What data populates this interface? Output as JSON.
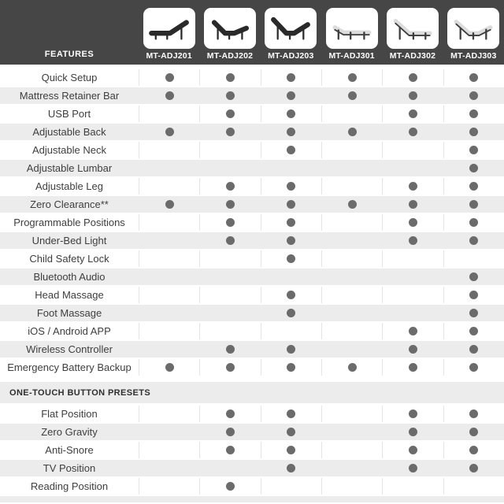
{
  "header": {
    "features_label": "FEATURES",
    "models": [
      {
        "name": "MT-ADJ201",
        "bed_icon": "bed-dark-incline-icon",
        "bed_color": "dark",
        "profile": "incline"
      },
      {
        "name": "MT-ADJ202",
        "bed_icon": "bed-dark-head-foot-icon",
        "bed_color": "dark",
        "profile": "headfoot"
      },
      {
        "name": "MT-ADJ203",
        "bed_icon": "bed-dark-head-foot-steep-icon",
        "bed_color": "dark",
        "profile": "headfootsteep"
      },
      {
        "name": "MT-ADJ301",
        "bed_icon": "bed-light-flat-icon",
        "bed_color": "light",
        "profile": "flat"
      },
      {
        "name": "MT-ADJ302",
        "bed_icon": "bed-light-head-icon",
        "bed_color": "light",
        "profile": "head"
      },
      {
        "name": "MT-ADJ303",
        "bed_icon": "bed-light-head-foot-icon",
        "bed_color": "light",
        "profile": "headfoot2"
      }
    ]
  },
  "sections": [
    {
      "title": "",
      "rows": [
        {
          "feature": "Quick Setup",
          "availability": [
            1,
            1,
            1,
            1,
            1,
            1
          ]
        },
        {
          "feature": "Mattress Retainer Bar",
          "availability": [
            1,
            1,
            1,
            1,
            1,
            1
          ]
        },
        {
          "feature": "USB Port",
          "availability": [
            0,
            1,
            1,
            0,
            1,
            1
          ]
        },
        {
          "feature": "Adjustable Back",
          "availability": [
            1,
            1,
            1,
            1,
            1,
            1
          ]
        },
        {
          "feature": "Adjustable Neck",
          "availability": [
            0,
            0,
            1,
            0,
            0,
            1
          ]
        },
        {
          "feature": "Adjustable Lumbar",
          "availability": [
            0,
            0,
            0,
            0,
            0,
            1
          ]
        },
        {
          "feature": "Adjustable Leg",
          "availability": [
            0,
            1,
            1,
            0,
            1,
            1
          ]
        },
        {
          "feature": "Zero Clearance**",
          "availability": [
            1,
            1,
            1,
            1,
            1,
            1
          ]
        },
        {
          "feature": "Programmable Positions",
          "availability": [
            0,
            1,
            1,
            0,
            1,
            1
          ]
        },
        {
          "feature": "Under-Bed Light",
          "availability": [
            0,
            1,
            1,
            0,
            1,
            1
          ]
        },
        {
          "feature": "Child Safety Lock",
          "availability": [
            0,
            0,
            1,
            0,
            0,
            0
          ]
        },
        {
          "feature": "Bluetooth Audio",
          "availability": [
            0,
            0,
            0,
            0,
            0,
            1
          ]
        },
        {
          "feature": "Head Massage",
          "availability": [
            0,
            0,
            1,
            0,
            0,
            1
          ]
        },
        {
          "feature": "Foot Massage",
          "availability": [
            0,
            0,
            1,
            0,
            0,
            1
          ]
        },
        {
          "feature": "iOS / Android APP",
          "availability": [
            0,
            0,
            0,
            0,
            1,
            1
          ]
        },
        {
          "feature": "Wireless Controller",
          "availability": [
            0,
            1,
            1,
            0,
            1,
            1
          ]
        },
        {
          "feature": "Emergency Battery Backup",
          "availability": [
            1,
            1,
            1,
            1,
            1,
            1
          ]
        }
      ]
    },
    {
      "title": "ONE-TOUCH BUTTON PRESETS",
      "rows": [
        {
          "feature": "Flat Position",
          "availability": [
            0,
            1,
            1,
            0,
            1,
            1
          ]
        },
        {
          "feature": "Zero Gravity",
          "availability": [
            0,
            1,
            1,
            0,
            1,
            1
          ]
        },
        {
          "feature": "Anti-Snore",
          "availability": [
            0,
            1,
            1,
            0,
            1,
            1
          ]
        },
        {
          "feature": "TV Position",
          "availability": [
            0,
            0,
            1,
            0,
            1,
            1
          ]
        },
        {
          "feature": "Reading Position",
          "availability": [
            0,
            1,
            0,
            0,
            0,
            0
          ]
        }
      ]
    }
  ],
  "icons": {
    "included_marker": "filled-circle-dot"
  },
  "colors": {
    "header_bg": "#464646",
    "row_alt_bg": "#ececec",
    "dot_color": "#6b6b6b",
    "grid_line": "#e4e4e4",
    "text_color": "#3e3e3e",
    "header_text": "#ffffff"
  }
}
